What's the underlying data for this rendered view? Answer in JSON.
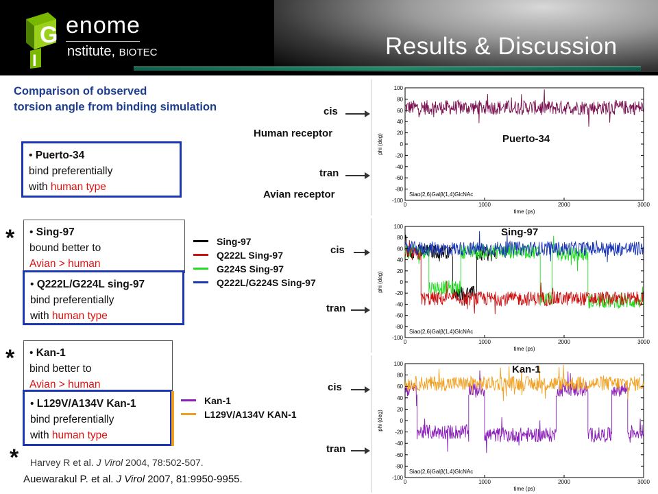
{
  "header": {
    "logo_line1": "enome",
    "logo_line2": "nstitute,",
    "logo_line2_org": "BIOTEC",
    "logo_letters": [
      "G",
      "I"
    ],
    "title": "Results & Discussion"
  },
  "section_title": [
    "Comparison of observed",
    "torsion angle from binding simulation"
  ],
  "boxes": {
    "puerto": {
      "name": "Puerto-34",
      "line2": "bind preferentially",
      "line3a": "with ",
      "line3b": "human type"
    },
    "sing": {
      "name": "Sing-97",
      "line2": "bound better to",
      "line3": "Avian > human"
    },
    "sing_mut": {
      "name": "Q222L/G224L sing-97",
      "line2": "bind preferentially",
      "line3a": "with ",
      "line3b": "human type"
    },
    "kan": {
      "name": "Kan-1",
      "line2": "bind better to",
      "line3": "Avian > human"
    },
    "kan_mut": {
      "name": "L129V/A134V Kan-1",
      "line2": "bind preferentially",
      "line3a": "with ",
      "line3b": "human type"
    }
  },
  "stars": [
    "*",
    "*",
    "*"
  ],
  "legend_sing": [
    {
      "label": "Sing-97",
      "color": "#000000"
    },
    {
      "label": "Q222L Sing-97",
      "color": "#cc1111"
    },
    {
      "label": "G224S Sing-97",
      "color": "#22dd22"
    },
    {
      "label": "Q222L/G224S Sing-97",
      "color": "#1b36b5"
    }
  ],
  "legend_kan": [
    {
      "label": "Kan-1",
      "color": "#8a1fb8"
    },
    {
      "label": "L129V/A134V KAN-1",
      "color": "#f0a020"
    }
  ],
  "labels": {
    "cis": "cis",
    "tran": "tran",
    "human_receptor": "Human receptor",
    "avian_receptor": "Avian receptor"
  },
  "references": {
    "ref1_text": "Harvey R et al. ",
    "ref1_journal": "J Virol",
    "ref1_rest": " 2004, 78:502-507.",
    "ref2_text": "Auewarakul P. et al. ",
    "ref2_journal": "J Virol",
    "ref2_rest": " 2007, 81:9950-9955."
  },
  "chart_data": [
    {
      "type": "line",
      "panel_title": "Puerto-34",
      "xlabel": "time (ps)",
      "ylabel": "phi (deg)",
      "annotation": "Siaα(2,6)Galβ(1,4)GlcNAc",
      "xlim": [
        0,
        3000
      ],
      "ylim": [
        -100,
        100
      ],
      "xticks": [
        0,
        1000,
        2000,
        3000
      ],
      "yticks": [
        -100,
        -80,
        -60,
        -40,
        -20,
        0,
        20,
        40,
        60,
        80,
        100
      ],
      "series": [
        {
          "color": "#7a1050",
          "segments": [
            [
              0,
              3000,
              65
            ]
          ]
        }
      ]
    },
    {
      "type": "line",
      "panel_title": "Sing-97",
      "xlabel": "time (ps)",
      "ylabel": "phi (deg)",
      "annotation": "Siaα(2,6)Galβ(1,4)GlcNAc",
      "xlim": [
        0,
        3000
      ],
      "ylim": [
        -100,
        100
      ],
      "xticks": [
        0,
        1000,
        2000,
        3000
      ],
      "yticks": [
        -100,
        -80,
        -60,
        -40,
        -20,
        0,
        20,
        40,
        60,
        80,
        100
      ],
      "series": [
        {
          "color": "#000000",
          "segments": [
            [
              0,
              600,
              55
            ],
            [
              600,
              900,
              -20
            ],
            [
              900,
              1150,
              50
            ]
          ]
        },
        {
          "color": "#22dd22",
          "segments": [
            [
              0,
              300,
              55
            ],
            [
              300,
              700,
              -10
            ],
            [
              700,
              1700,
              55
            ],
            [
              1700,
              1850,
              -30
            ],
            [
              1850,
              2300,
              50
            ],
            [
              2300,
              3000,
              -35
            ]
          ]
        },
        {
          "color": "#cc1111",
          "segments": [
            [
              0,
              200,
              50
            ],
            [
              200,
              1000,
              -30
            ],
            [
              1000,
              3000,
              -30
            ]
          ]
        },
        {
          "color": "#1b36b5",
          "segments": [
            [
              0,
              3000,
              60
            ]
          ]
        }
      ]
    },
    {
      "type": "line",
      "panel_title": "Kan-1",
      "xlabel": "time (ps)",
      "ylabel": "phi (deg)",
      "annotation": "Siaα(2,6)Galβ(1,4)GlcNAc",
      "xlim": [
        0,
        3000
      ],
      "ylim": [
        -100,
        100
      ],
      "xticks": [
        0,
        1000,
        2000,
        3000
      ],
      "yticks": [
        -100,
        -80,
        -60,
        -40,
        -20,
        0,
        20,
        40,
        60,
        80,
        100
      ],
      "series": [
        {
          "color": "#8a1fb8",
          "segments": [
            [
              0,
              150,
              55
            ],
            [
              150,
              800,
              -20
            ],
            [
              800,
              1000,
              55
            ],
            [
              1000,
              1900,
              -25
            ],
            [
              1900,
              2300,
              55
            ],
            [
              2300,
              2600,
              -25
            ],
            [
              2600,
              2800,
              55
            ],
            [
              2800,
              3000,
              -20
            ]
          ]
        },
        {
          "color": "#f0a020",
          "segments": [
            [
              0,
              3000,
              65
            ]
          ]
        }
      ]
    }
  ]
}
